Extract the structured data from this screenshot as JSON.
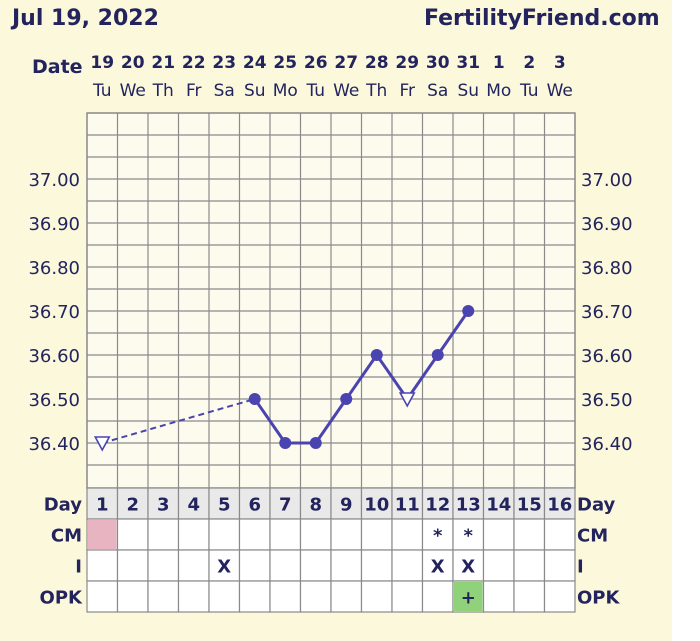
{
  "header": {
    "title": "Jul 19, 2022",
    "site": "FertilityFriend.com"
  },
  "chart_data": {
    "type": "line",
    "date_label": "Date",
    "dates": [
      "19",
      "20",
      "21",
      "22",
      "23",
      "24",
      "25",
      "26",
      "27",
      "28",
      "29",
      "30",
      "31",
      "1",
      "2",
      "3"
    ],
    "weekdays": [
      "Tu",
      "We",
      "Th",
      "Fr",
      "Sa",
      "Su",
      "Mo",
      "Tu",
      "We",
      "Th",
      "Fr",
      "Sa",
      "Su",
      "Mo",
      "Tu",
      "We"
    ],
    "days": [
      "1",
      "2",
      "3",
      "4",
      "5",
      "6",
      "7",
      "8",
      "9",
      "10",
      "11",
      "12",
      "13",
      "14",
      "15",
      "16"
    ],
    "y_ticks": [
      "37.00",
      "36.90",
      "36.80",
      "36.70",
      "36.60",
      "36.50",
      "36.40"
    ],
    "ylim": [
      36.3,
      37.15
    ],
    "temperatures": [
      {
        "day": 1,
        "value": 36.4,
        "marker": "open-triangle"
      },
      {
        "day": 6,
        "value": 36.5,
        "marker": "dot"
      },
      {
        "day": 7,
        "value": 36.4,
        "marker": "dot"
      },
      {
        "day": 8,
        "value": 36.4,
        "marker": "dot"
      },
      {
        "day": 9,
        "value": 36.5,
        "marker": "dot"
      },
      {
        "day": 10,
        "value": 36.6,
        "marker": "dot"
      },
      {
        "day": 11,
        "value": 36.5,
        "marker": "open-triangle"
      },
      {
        "day": 12,
        "value": 36.6,
        "marker": "dot"
      },
      {
        "day": 13,
        "value": 36.7,
        "marker": "dot"
      }
    ],
    "dashed_segments": [
      [
        1,
        6
      ]
    ],
    "rows": {
      "day": "Day",
      "cm": "CM",
      "i": "I",
      "opk": "OPK"
    },
    "cm_marks": [
      {
        "day": 1,
        "mark": "",
        "fill": "#e8b4c2"
      },
      {
        "day": 12,
        "mark": "*"
      },
      {
        "day": 13,
        "mark": "*"
      }
    ],
    "i_marks": [
      {
        "day": 5,
        "mark": "X"
      },
      {
        "day": 12,
        "mark": "X"
      },
      {
        "day": 13,
        "mark": "X"
      }
    ],
    "opk_marks": [
      {
        "day": 13,
        "mark": "+",
        "fill": "#90d27a"
      }
    ],
    "colors": {
      "line": "#4a44b0",
      "text": "#23245e",
      "grid": "#8a8a8a",
      "day_row_bg": "#e9e9e9",
      "cell_bg": "#ffffff",
      "chart_bg": "#fdfbee"
    }
  }
}
